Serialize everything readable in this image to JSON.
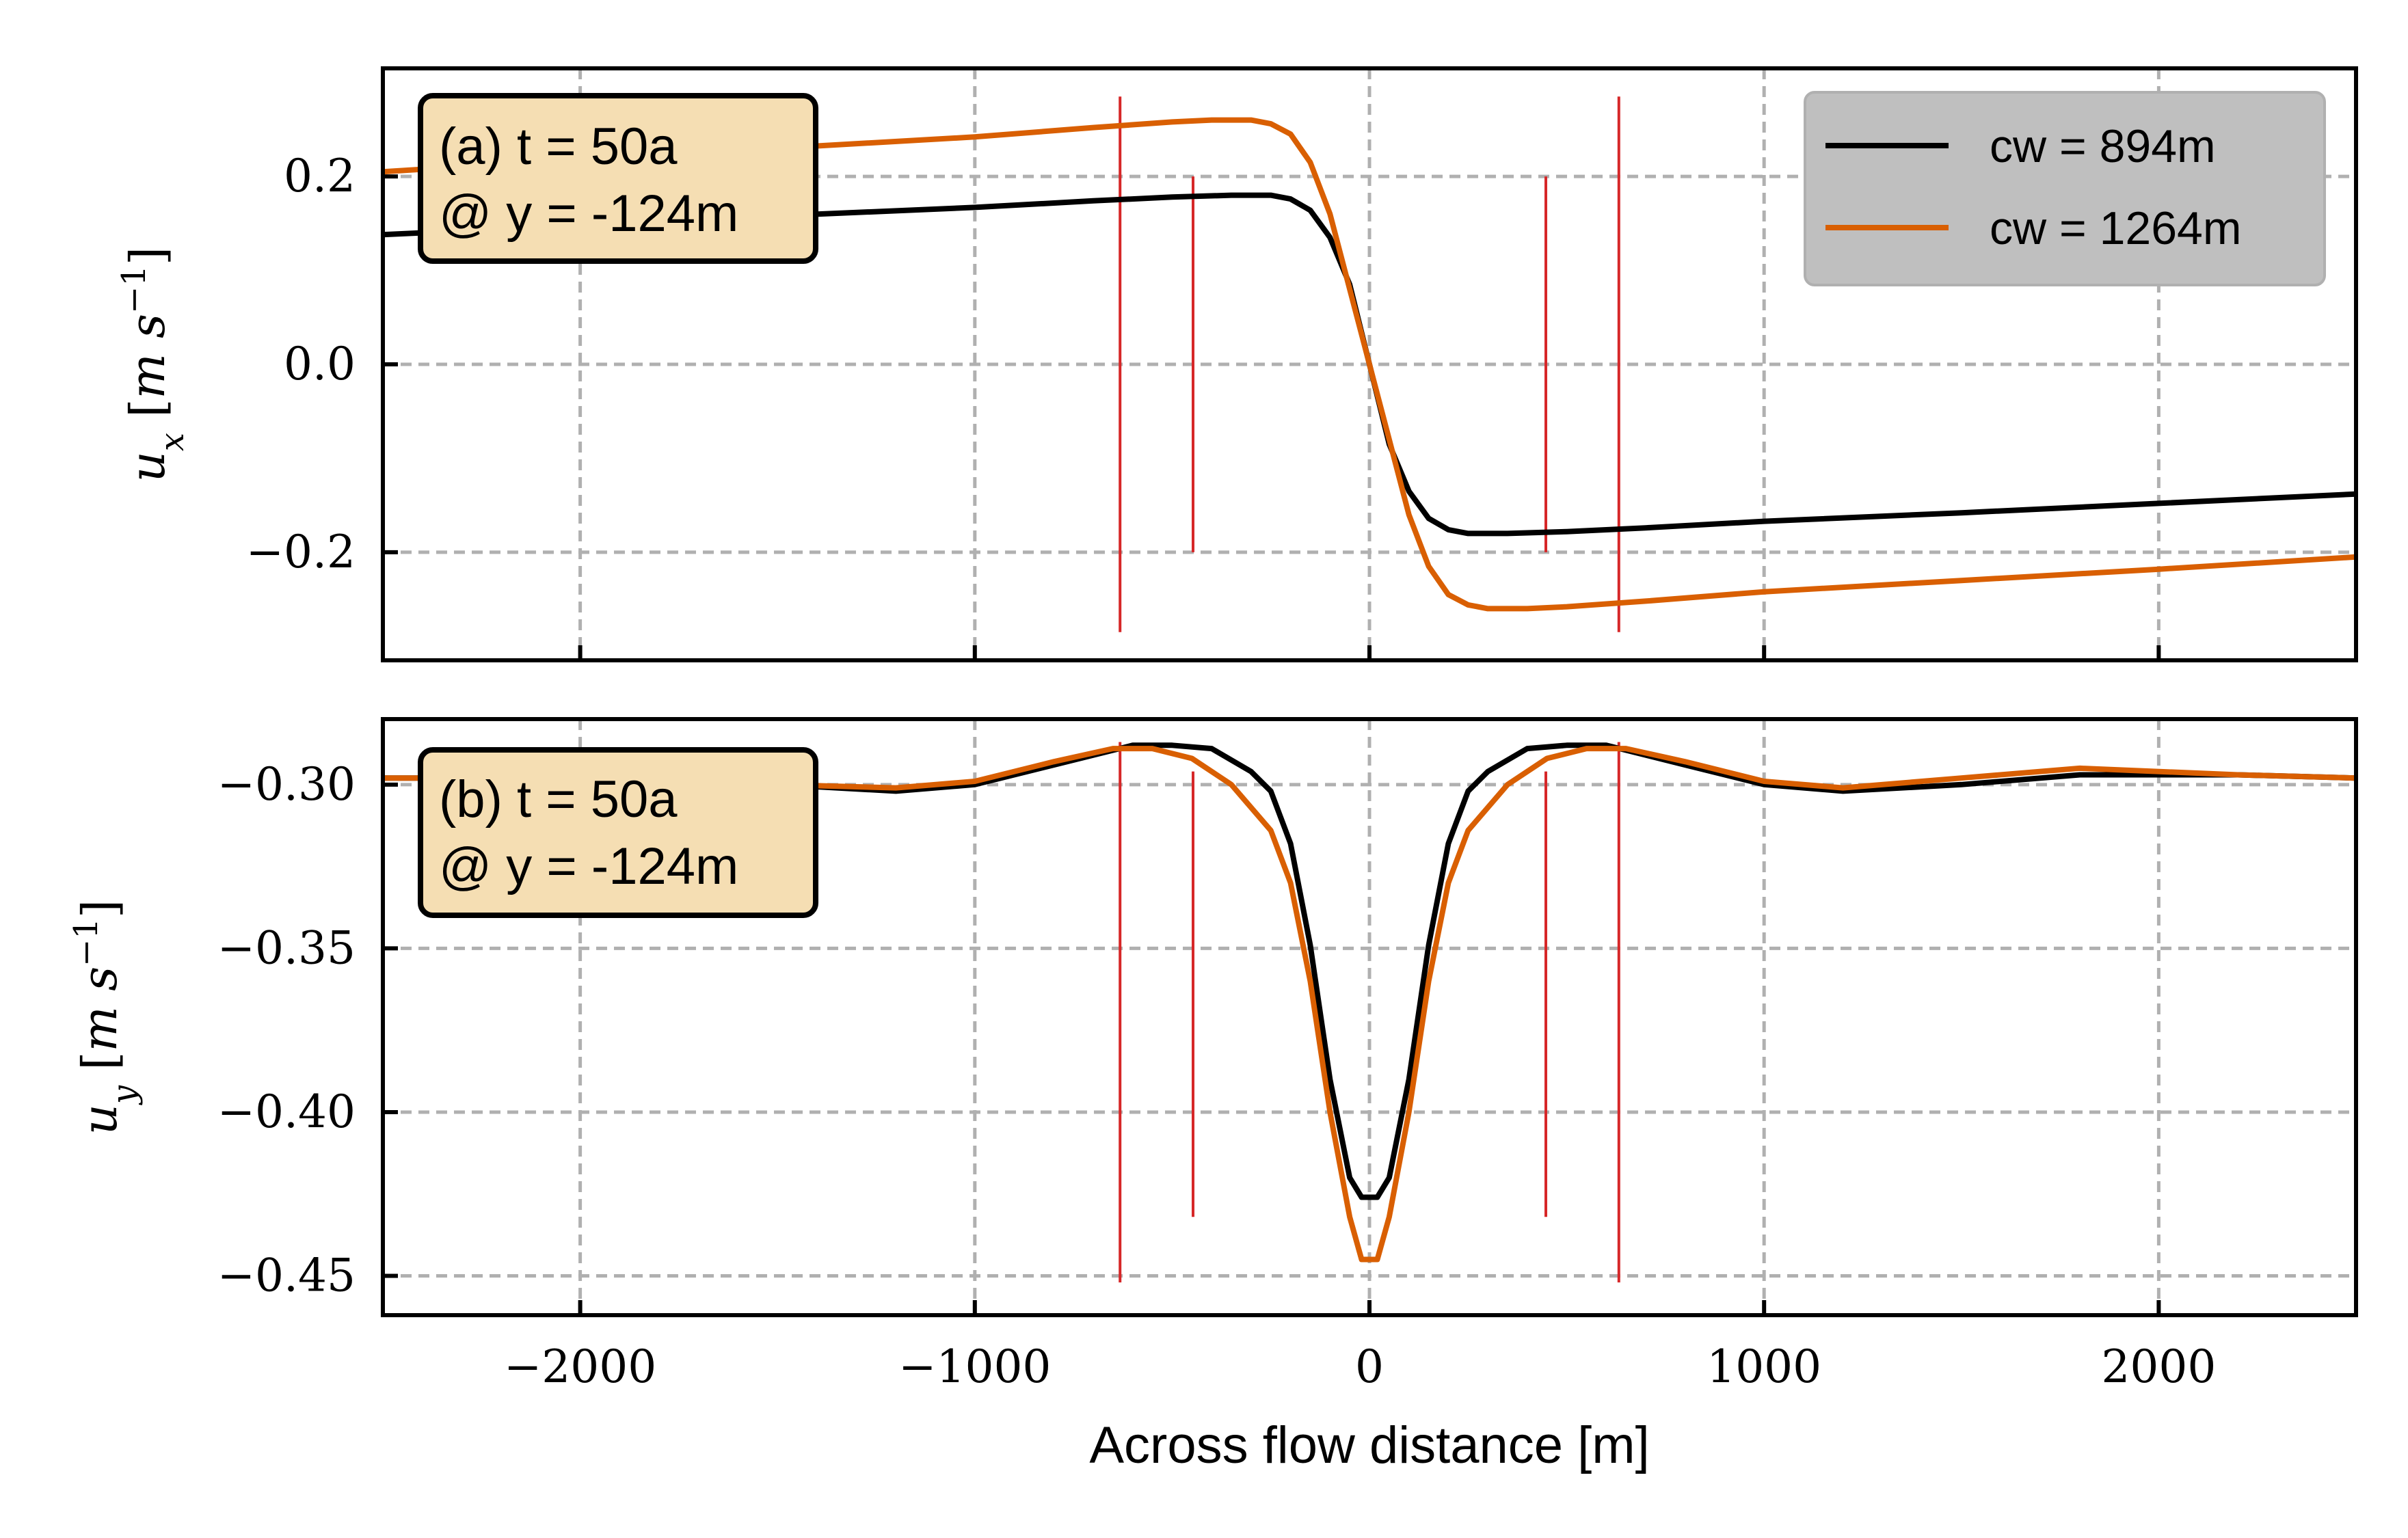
{
  "chart_data": [
    {
      "type": "line",
      "panel_label": [
        "(a) t = 50a",
        "@ y = -124m"
      ],
      "ylabel": "u_x [m s^-1]",
      "ylabel_parts": {
        "base": "u",
        "sub": "x",
        "unit_open": " [",
        "unit_m": "m",
        "unit_s": " s",
        "unit_exp": "−1",
        "unit_close": "]"
      },
      "xlim": [
        -2500,
        2500
      ],
      "ylim": [
        -0.315,
        0.315
      ],
      "x_ticks": [
        -2000,
        -1000,
        0,
        1000,
        2000
      ],
      "y_ticks": [
        -0.2,
        0.0,
        0.2
      ],
      "y_tick_labels": [
        "−0.2",
        "0.0",
        "0.2"
      ],
      "grid": true,
      "legend": {
        "placement": "top-right",
        "entries": [
          {
            "label": "cw = 894m",
            "color": "#000000"
          },
          {
            "label": "cw = 1264m",
            "color": "#d95f02"
          }
        ]
      },
      "series": [
        {
          "name": "cw = 894m",
          "color": "#000000",
          "points": [
            [
              -2500,
              0.138
            ],
            [
              -2000,
              0.148
            ],
            [
              -1500,
              0.158
            ],
            [
              -1000,
              0.167
            ],
            [
              -700,
              0.174
            ],
            [
              -500,
              0.178
            ],
            [
              -350,
              0.18
            ],
            [
              -250,
              0.18
            ],
            [
              -200,
              0.176
            ],
            [
              -150,
              0.164
            ],
            [
              -100,
              0.135
            ],
            [
              -50,
              0.085
            ],
            [
              0,
              0.0
            ],
            [
              50,
              -0.085
            ],
            [
              100,
              -0.135
            ],
            [
              150,
              -0.164
            ],
            [
              200,
              -0.176
            ],
            [
              250,
              -0.18
            ],
            [
              350,
              -0.18
            ],
            [
              500,
              -0.178
            ],
            [
              700,
              -0.174
            ],
            [
              1000,
              -0.167
            ],
            [
              1500,
              -0.158
            ],
            [
              2000,
              -0.148
            ],
            [
              2500,
              -0.138
            ]
          ]
        },
        {
          "name": "cw = 1264m",
          "color": "#d95f02",
          "points": [
            [
              -2500,
              0.205
            ],
            [
              -2000,
              0.218
            ],
            [
              -1500,
              0.23
            ],
            [
              -1000,
              0.242
            ],
            [
              -700,
              0.252
            ],
            [
              -500,
              0.258
            ],
            [
              -400,
              0.26
            ],
            [
              -300,
              0.26
            ],
            [
              -250,
              0.256
            ],
            [
              -200,
              0.245
            ],
            [
              -150,
              0.215
            ],
            [
              -100,
              0.16
            ],
            [
              -50,
              0.08
            ],
            [
              0,
              0.0
            ],
            [
              50,
              -0.08
            ],
            [
              100,
              -0.16
            ],
            [
              150,
              -0.215
            ],
            [
              200,
              -0.245
            ],
            [
              250,
              -0.256
            ],
            [
              300,
              -0.26
            ],
            [
              400,
              -0.26
            ],
            [
              500,
              -0.258
            ],
            [
              700,
              -0.252
            ],
            [
              1000,
              -0.242
            ],
            [
              1500,
              -0.23
            ],
            [
              2000,
              -0.218
            ],
            [
              2500,
              -0.205
            ]
          ]
        }
      ],
      "vlines": [
        {
          "x": -632,
          "y_range": [
            -0.285,
            0.285
          ],
          "color": "#d62728"
        },
        {
          "x": -447,
          "y_range": [
            -0.2,
            0.2
          ],
          "color": "#d62728"
        },
        {
          "x": 447,
          "y_range": [
            -0.2,
            0.2
          ],
          "color": "#d62728"
        },
        {
          "x": 632,
          "y_range": [
            -0.285,
            0.285
          ],
          "color": "#d62728"
        }
      ]
    },
    {
      "type": "line",
      "panel_label": [
        "(b) t = 50a",
        "@ y = -124m"
      ],
      "ylabel": "u_y [m s^-1]",
      "ylabel_parts": {
        "base": "u",
        "sub": "y",
        "unit_open": " [",
        "unit_m": "m",
        "unit_s": " s",
        "unit_exp": "−1",
        "unit_close": "]"
      },
      "xlabel": "Across flow distance [m]",
      "xlim": [
        -2500,
        2500
      ],
      "ylim": [
        -0.462,
        -0.28
      ],
      "x_ticks": [
        -2000,
        -1000,
        0,
        1000,
        2000
      ],
      "x_tick_labels": [
        "−2000",
        "−1000",
        "0",
        "1000",
        "2000"
      ],
      "y_ticks": [
        -0.3,
        -0.35,
        -0.4,
        -0.45
      ],
      "y_tick_labels": [
        "−0.30",
        "−0.35",
        "−0.40",
        "−0.45"
      ],
      "grid": true,
      "series": [
        {
          "name": "cw = 894m",
          "color": "#000000",
          "points": [
            [
              -2500,
              -0.298
            ],
            [
              -2200,
              -0.298
            ],
            [
              -1800,
              -0.299
            ],
            [
              -1500,
              -0.3
            ],
            [
              -1200,
              -0.302
            ],
            [
              -1000,
              -0.3
            ],
            [
              -800,
              -0.294
            ],
            [
              -600,
              -0.288
            ],
            [
              -500,
              -0.288
            ],
            [
              -400,
              -0.289
            ],
            [
              -300,
              -0.296
            ],
            [
              -250,
              -0.302
            ],
            [
              -200,
              -0.318
            ],
            [
              -150,
              -0.349
            ],
            [
              -100,
              -0.39
            ],
            [
              -50,
              -0.42
            ],
            [
              -20,
              -0.426
            ],
            [
              20,
              -0.426
            ],
            [
              50,
              -0.42
            ],
            [
              100,
              -0.39
            ],
            [
              150,
              -0.349
            ],
            [
              200,
              -0.318
            ],
            [
              250,
              -0.302
            ],
            [
              300,
              -0.296
            ],
            [
              400,
              -0.289
            ],
            [
              500,
              -0.288
            ],
            [
              600,
              -0.288
            ],
            [
              800,
              -0.294
            ],
            [
              1000,
              -0.3
            ],
            [
              1200,
              -0.302
            ],
            [
              1500,
              -0.3
            ],
            [
              1800,
              -0.297
            ],
            [
              2200,
              -0.297
            ],
            [
              2500,
              -0.298
            ]
          ]
        },
        {
          "name": "cw = 1264m",
          "color": "#d95f02",
          "points": [
            [
              -2500,
              -0.298
            ],
            [
              -2200,
              -0.298
            ],
            [
              -1800,
              -0.299
            ],
            [
              -1500,
              -0.3
            ],
            [
              -1200,
              -0.301
            ],
            [
              -1000,
              -0.299
            ],
            [
              -800,
              -0.293
            ],
            [
              -650,
              -0.289
            ],
            [
              -550,
              -0.289
            ],
            [
              -450,
              -0.292
            ],
            [
              -350,
              -0.3
            ],
            [
              -250,
              -0.314
            ],
            [
              -200,
              -0.33
            ],
            [
              -150,
              -0.36
            ],
            [
              -100,
              -0.4
            ],
            [
              -50,
              -0.432
            ],
            [
              -20,
              -0.445
            ],
            [
              20,
              -0.445
            ],
            [
              50,
              -0.432
            ],
            [
              100,
              -0.4
            ],
            [
              150,
              -0.36
            ],
            [
              200,
              -0.33
            ],
            [
              250,
              -0.314
            ],
            [
              350,
              -0.3
            ],
            [
              450,
              -0.292
            ],
            [
              550,
              -0.289
            ],
            [
              650,
              -0.289
            ],
            [
              800,
              -0.293
            ],
            [
              1000,
              -0.299
            ],
            [
              1200,
              -0.301
            ],
            [
              1500,
              -0.298
            ],
            [
              1800,
              -0.295
            ],
            [
              2200,
              -0.297
            ],
            [
              2500,
              -0.298
            ]
          ]
        }
      ],
      "vlines": [
        {
          "x": -632,
          "y_range": [
            -0.452,
            -0.287
          ],
          "color": "#d62728"
        },
        {
          "x": -447,
          "y_range": [
            -0.432,
            -0.296
          ],
          "color": "#d62728"
        },
        {
          "x": 447,
          "y_range": [
            -0.432,
            -0.296
          ],
          "color": "#d62728"
        },
        {
          "x": 632,
          "y_range": [
            -0.452,
            -0.287
          ],
          "color": "#d62728"
        }
      ]
    }
  ]
}
